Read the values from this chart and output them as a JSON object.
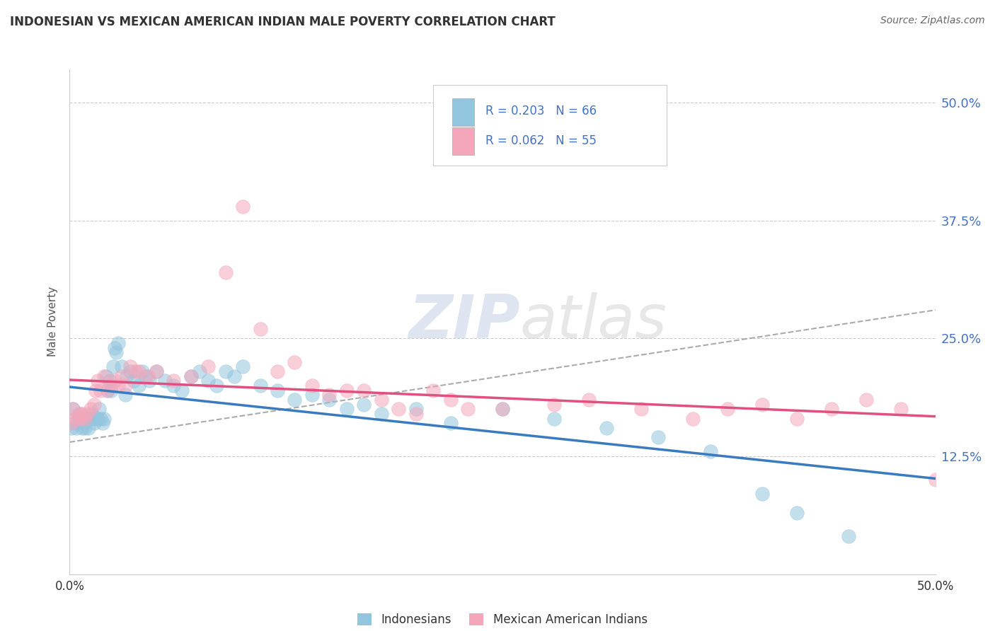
{
  "title": "INDONESIAN VS MEXICAN AMERICAN INDIAN MALE POVERTY CORRELATION CHART",
  "source": "Source: ZipAtlas.com",
  "ylabel": "Male Poverty",
  "xlim": [
    0.0,
    0.5
  ],
  "ylim": [
    0.0,
    0.535
  ],
  "ytick_labels": [
    "12.5%",
    "25.0%",
    "37.5%",
    "50.0%"
  ],
  "ytick_values": [
    0.125,
    0.25,
    0.375,
    0.5
  ],
  "legend_text1": "R = 0.203   N = 66",
  "legend_text2": "R = 0.062   N = 55",
  "color_indonesian": "#92c5de",
  "color_mexican": "#f4a6ba",
  "color_line_indonesian": "#3a7abf",
  "color_line_mexican": "#e05080",
  "color_dash": "#aaaaaa",
  "watermark_zip": "ZIP",
  "watermark_atlas": "atlas",
  "indonesian_x": [
    0.001,
    0.002,
    0.003,
    0.004,
    0.005,
    0.006,
    0.007,
    0.008,
    0.009,
    0.01,
    0.011,
    0.012,
    0.013,
    0.014,
    0.015,
    0.016,
    0.017,
    0.018,
    0.019,
    0.02,
    0.021,
    0.022,
    0.023,
    0.024,
    0.025,
    0.026,
    0.027,
    0.028,
    0.03,
    0.032,
    0.033,
    0.035,
    0.037,
    0.04,
    0.042,
    0.044,
    0.046,
    0.05,
    0.055,
    0.06,
    0.065,
    0.07,
    0.075,
    0.08,
    0.085,
    0.09,
    0.095,
    0.1,
    0.11,
    0.12,
    0.13,
    0.14,
    0.15,
    0.16,
    0.17,
    0.18,
    0.2,
    0.22,
    0.25,
    0.28,
    0.31,
    0.34,
    0.37,
    0.4,
    0.42,
    0.45
  ],
  "indonesian_y": [
    0.155,
    0.175,
    0.16,
    0.155,
    0.165,
    0.17,
    0.155,
    0.16,
    0.155,
    0.165,
    0.155,
    0.165,
    0.17,
    0.16,
    0.165,
    0.165,
    0.175,
    0.165,
    0.16,
    0.165,
    0.21,
    0.195,
    0.205,
    0.195,
    0.22,
    0.24,
    0.235,
    0.245,
    0.22,
    0.19,
    0.21,
    0.215,
    0.205,
    0.2,
    0.215,
    0.21,
    0.205,
    0.215,
    0.205,
    0.2,
    0.195,
    0.21,
    0.215,
    0.205,
    0.2,
    0.215,
    0.21,
    0.22,
    0.2,
    0.195,
    0.185,
    0.19,
    0.185,
    0.175,
    0.18,
    0.17,
    0.175,
    0.16,
    0.175,
    0.165,
    0.155,
    0.145,
    0.13,
    0.085,
    0.065,
    0.04
  ],
  "mexican_x": [
    0.001,
    0.002,
    0.003,
    0.005,
    0.006,
    0.007,
    0.009,
    0.01,
    0.012,
    0.014,
    0.015,
    0.016,
    0.018,
    0.02,
    0.022,
    0.024,
    0.026,
    0.028,
    0.03,
    0.032,
    0.035,
    0.038,
    0.04,
    0.045,
    0.05,
    0.06,
    0.07,
    0.08,
    0.09,
    0.1,
    0.11,
    0.12,
    0.13,
    0.14,
    0.15,
    0.16,
    0.18,
    0.2,
    0.22,
    0.25,
    0.28,
    0.3,
    0.33,
    0.36,
    0.38,
    0.4,
    0.42,
    0.44,
    0.46,
    0.48,
    0.5,
    0.17,
    0.19,
    0.21,
    0.23
  ],
  "mexican_y": [
    0.16,
    0.175,
    0.165,
    0.17,
    0.165,
    0.17,
    0.165,
    0.17,
    0.175,
    0.18,
    0.195,
    0.205,
    0.195,
    0.21,
    0.195,
    0.2,
    0.205,
    0.2,
    0.21,
    0.2,
    0.22,
    0.215,
    0.215,
    0.21,
    0.215,
    0.205,
    0.21,
    0.22,
    0.32,
    0.39,
    0.26,
    0.215,
    0.225,
    0.2,
    0.19,
    0.195,
    0.185,
    0.17,
    0.185,
    0.175,
    0.18,
    0.185,
    0.175,
    0.165,
    0.175,
    0.18,
    0.165,
    0.175,
    0.185,
    0.175,
    0.1,
    0.195,
    0.175,
    0.195,
    0.175
  ]
}
